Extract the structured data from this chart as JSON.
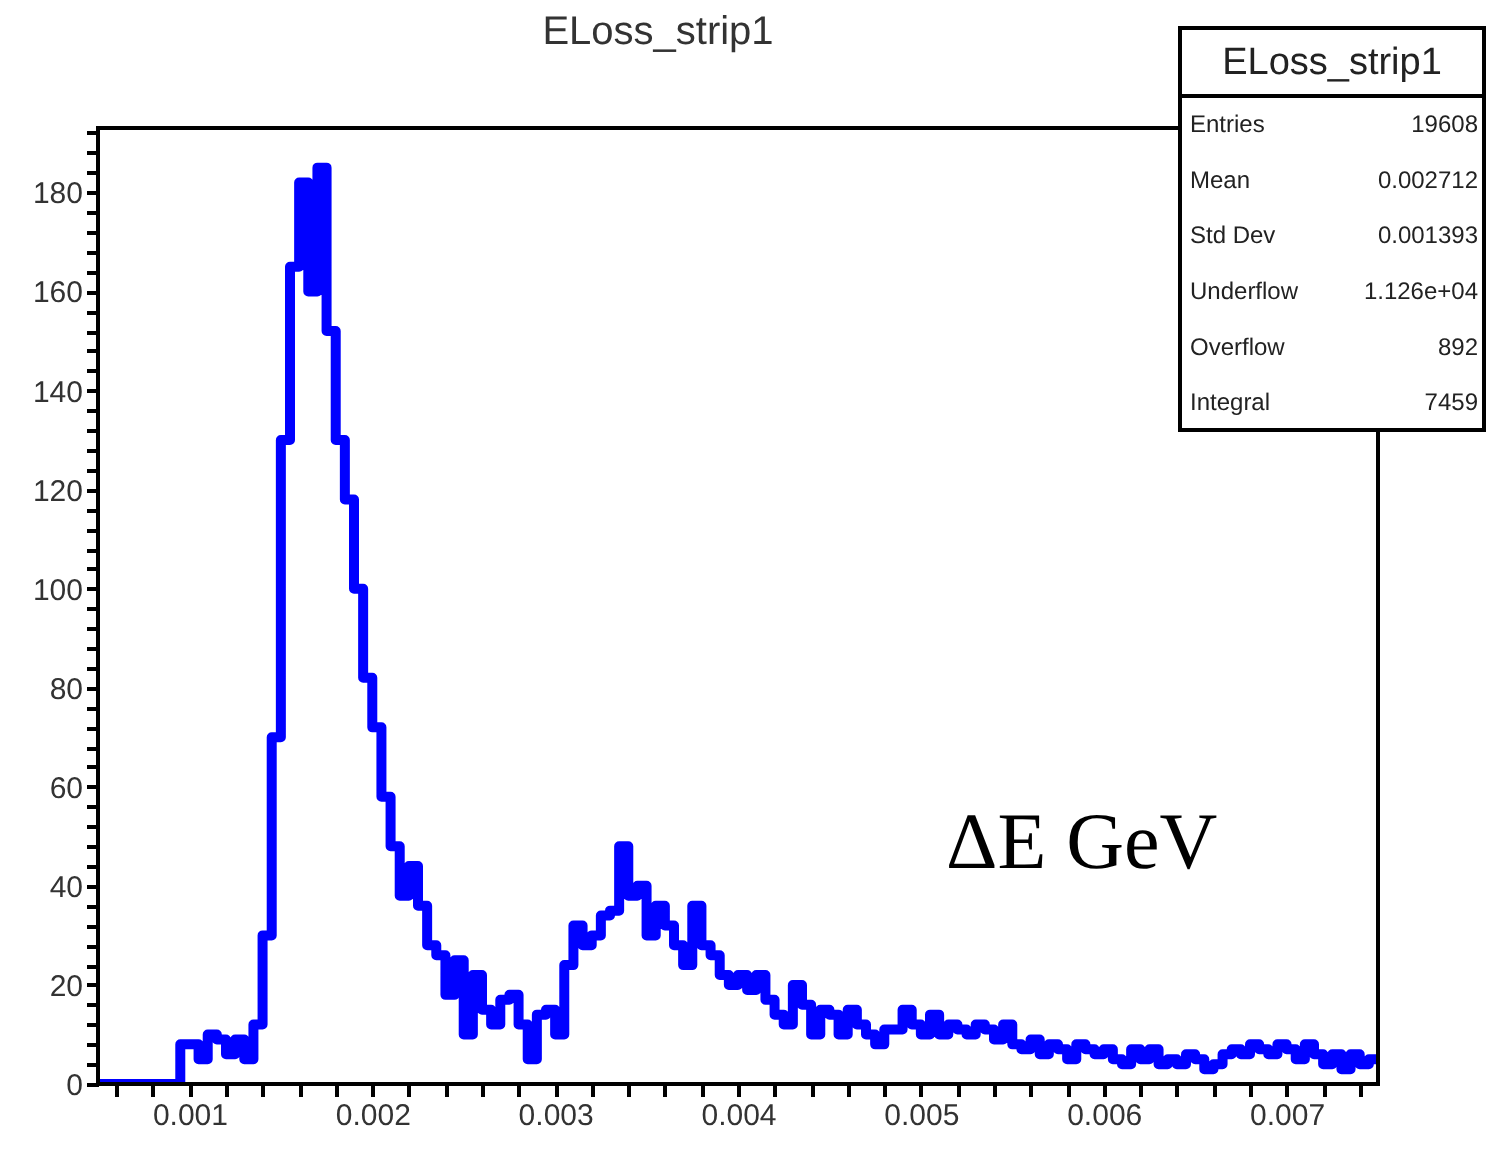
{
  "chart_data": {
    "type": "histogram",
    "title": "ELoss_strip1",
    "xlabel": "ΔE GeV",
    "bins": [
      0.0005,
      0.00055,
      0.0006,
      0.00065,
      0.0007,
      0.00075,
      0.0008,
      0.00085,
      0.0009,
      0.00095,
      0.001,
      0.00105,
      0.0011,
      0.00115,
      0.0012,
      0.00125,
      0.0013,
      0.00135,
      0.0014,
      0.00145,
      0.0015,
      0.00155,
      0.0016,
      0.00165,
      0.0017,
      0.00175,
      0.0018,
      0.00185,
      0.0019,
      0.00195,
      0.002,
      0.00205,
      0.0021,
      0.00215,
      0.0022,
      0.00225,
      0.0023,
      0.00235,
      0.0024,
      0.00245,
      0.0025,
      0.00255,
      0.0026,
      0.00265,
      0.0027,
      0.00275,
      0.0028,
      0.00285,
      0.0029,
      0.00295,
      0.003,
      0.00305,
      0.0031,
      0.00315,
      0.0032,
      0.00325,
      0.0033,
      0.00335,
      0.0034,
      0.00345,
      0.0035,
      0.00355,
      0.0036,
      0.00365,
      0.0037,
      0.00375,
      0.0038,
      0.00385,
      0.0039,
      0.00395,
      0.004,
      0.00405,
      0.0041,
      0.00415,
      0.0042,
      0.00425,
      0.0043,
      0.00435,
      0.0044,
      0.00445,
      0.0045,
      0.00455,
      0.0046,
      0.00465,
      0.0047,
      0.00475,
      0.0048,
      0.00485,
      0.0049,
      0.00495,
      0.005,
      0.00505,
      0.0051,
      0.00515,
      0.0052,
      0.00525,
      0.0053,
      0.00535,
      0.0054,
      0.00545,
      0.0055,
      0.00555,
      0.0056,
      0.00565,
      0.0057,
      0.00575,
      0.0058,
      0.00585,
      0.0059,
      0.00595,
      0.006,
      0.00605,
      0.0061,
      0.00615,
      0.0062,
      0.00625,
      0.0063,
      0.00635,
      0.0064,
      0.00645,
      0.0065,
      0.00655,
      0.0066,
      0.00665,
      0.0067,
      0.00675,
      0.0068,
      0.00685,
      0.0069,
      0.00695,
      0.007,
      0.00705,
      0.0071,
      0.00715,
      0.0072,
      0.00725,
      0.0073,
      0.00735,
      0.0074,
      0.00745,
      0.0075
    ],
    "values": [
      0,
      0,
      0,
      0,
      0,
      0,
      0,
      0,
      0,
      8,
      8,
      5,
      10,
      9,
      6,
      9,
      5,
      12,
      30,
      70,
      130,
      165,
      182,
      160,
      185,
      152,
      130,
      118,
      100,
      82,
      72,
      58,
      48,
      38,
      44,
      36,
      28,
      26,
      18,
      25,
      10,
      22,
      15,
      12,
      17,
      18,
      12,
      5,
      14,
      15,
      10,
      24,
      32,
      28,
      30,
      34,
      35,
      48,
      38,
      40,
      30,
      36,
      32,
      28,
      24,
      36,
      28,
      26,
      22,
      20,
      22,
      19,
      22,
      17,
      14,
      12,
      20,
      16,
      10,
      15,
      14,
      10,
      15,
      12,
      10,
      8,
      11,
      11,
      15,
      12,
      10,
      14,
      10,
      12,
      11,
      10,
      12,
      11,
      9,
      12,
      8,
      7,
      9,
      6,
      8,
      7,
      5,
      8,
      7,
      6,
      7,
      5,
      4,
      7,
      5,
      7,
      4,
      5,
      4,
      6,
      5,
      3,
      4,
      6,
      7,
      6,
      8,
      7,
      6,
      8,
      7,
      5,
      8,
      6,
      4,
      6,
      3,
      6,
      4,
      5
    ],
    "color": "#0000ff",
    "xlim": [
      0.0005,
      0.0075
    ],
    "xticks": [
      {
        "value": 0.0006,
        "label": null
      },
      {
        "value": 0.0008,
        "label": null
      },
      {
        "value": 0.001,
        "label": "0.001"
      },
      {
        "value": 0.0012,
        "label": null
      },
      {
        "value": 0.0014,
        "label": null
      },
      {
        "value": 0.0016,
        "label": null
      },
      {
        "value": 0.0018,
        "label": null
      },
      {
        "value": 0.002,
        "label": "0.002"
      },
      {
        "value": 0.0022,
        "label": null
      },
      {
        "value": 0.0024,
        "label": null
      },
      {
        "value": 0.0026,
        "label": null
      },
      {
        "value": 0.0028,
        "label": null
      },
      {
        "value": 0.003,
        "label": "0.003"
      },
      {
        "value": 0.0032,
        "label": null
      },
      {
        "value": 0.0034,
        "label": null
      },
      {
        "value": 0.0036,
        "label": null
      },
      {
        "value": 0.0038,
        "label": null
      },
      {
        "value": 0.004,
        "label": "0.004"
      },
      {
        "value": 0.0042,
        "label": null
      },
      {
        "value": 0.0044,
        "label": null
      },
      {
        "value": 0.0046,
        "label": null
      },
      {
        "value": 0.0048,
        "label": null
      },
      {
        "value": 0.005,
        "label": "0.005"
      },
      {
        "value": 0.0052,
        "label": null
      },
      {
        "value": 0.0054,
        "label": null
      },
      {
        "value": 0.0056,
        "label": null
      },
      {
        "value": 0.0058,
        "label": null
      },
      {
        "value": 0.006,
        "label": "0.006"
      },
      {
        "value": 0.0062,
        "label": null
      },
      {
        "value": 0.0064,
        "label": null
      },
      {
        "value": 0.0066,
        "label": null
      },
      {
        "value": 0.0068,
        "label": null
      },
      {
        "value": 0.007,
        "label": "0.007"
      },
      {
        "value": 0.0072,
        "label": null
      },
      {
        "value": 0.0074,
        "label": null
      }
    ],
    "ylim": [
      0,
      193
    ],
    "yticks": [
      0,
      {
        "value": 4,
        "label": null
      },
      {
        "value": 8,
        "label": null
      },
      {
        "value": 12,
        "label": null
      },
      {
        "value": 16,
        "label": null
      },
      20,
      {
        "value": 24,
        "label": null
      },
      {
        "value": 28,
        "label": null
      },
      {
        "value": 32,
        "label": null
      },
      {
        "value": 36,
        "label": null
      },
      40,
      {
        "value": 44,
        "label": null
      },
      {
        "value": 48,
        "label": null
      },
      {
        "value": 52,
        "label": null
      },
      {
        "value": 56,
        "label": null
      },
      60,
      {
        "value": 64,
        "label": null
      },
      {
        "value": 68,
        "label": null
      },
      {
        "value": 72,
        "label": null
      },
      {
        "value": 76,
        "label": null
      },
      80,
      {
        "value": 84,
        "label": null
      },
      {
        "value": 88,
        "label": null
      },
      {
        "value": 92,
        "label": null
      },
      {
        "value": 96,
        "label": null
      },
      100,
      {
        "value": 104,
        "label": null
      },
      {
        "value": 108,
        "label": null
      },
      {
        "value": 112,
        "label": null
      },
      {
        "value": 116,
        "label": null
      },
      120,
      {
        "value": 124,
        "label": null
      },
      {
        "value": 128,
        "label": null
      },
      {
        "value": 132,
        "label": null
      },
      {
        "value": 136,
        "label": null
      },
      140,
      {
        "value": 144,
        "label": null
      },
      {
        "value": 148,
        "label": null
      },
      {
        "value": 152,
        "label": null
      },
      {
        "value": 156,
        "label": null
      },
      160,
      {
        "value": 164,
        "label": null
      },
      {
        "value": 168,
        "label": null
      },
      {
        "value": 172,
        "label": null
      },
      {
        "value": 176,
        "label": null
      },
      180,
      {
        "value": 184,
        "label": null
      },
      {
        "value": 188,
        "label": null
      },
      {
        "value": 192,
        "label": null
      }
    ],
    "annotations": [
      "ELoss_strip1",
      "Entries",
      "19608",
      "Mean",
      "0.002712",
      "Std Dev",
      "0.001393",
      "Underflow",
      "1.126e+04",
      "Overflow",
      "892",
      "Integral",
      "7459"
    ]
  }
}
